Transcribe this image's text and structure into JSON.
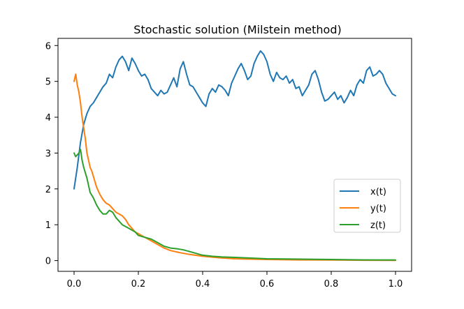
{
  "chart_data": {
    "type": "line",
    "title": "Stochastic solution (Milstein method)",
    "xlabel": "",
    "ylabel": "",
    "xlim": [
      -0.05,
      1.05
    ],
    "ylim": [
      -0.3,
      6.2
    ],
    "xticks": [
      0.0,
      0.2,
      0.4,
      0.6,
      0.8,
      1.0
    ],
    "xtick_labels": [
      "0.0",
      "0.2",
      "0.4",
      "0.6",
      "0.8",
      "1.0"
    ],
    "yticks": [
      0,
      1,
      2,
      3,
      4,
      5,
      6
    ],
    "ytick_labels": [
      "0",
      "1",
      "2",
      "3",
      "4",
      "5",
      "6"
    ],
    "grid": false,
    "legend_position": "center-right",
    "series": [
      {
        "name": "x(t)",
        "color": "#1f77b4",
        "x": [
          0.0,
          0.01,
          0.02,
          0.03,
          0.04,
          0.05,
          0.06,
          0.07,
          0.08,
          0.09,
          0.1,
          0.11,
          0.12,
          0.13,
          0.14,
          0.15,
          0.16,
          0.17,
          0.18,
          0.19,
          0.2,
          0.21,
          0.22,
          0.23,
          0.24,
          0.25,
          0.26,
          0.27,
          0.28,
          0.29,
          0.3,
          0.31,
          0.32,
          0.33,
          0.34,
          0.35,
          0.36,
          0.37,
          0.38,
          0.39,
          0.4,
          0.41,
          0.42,
          0.43,
          0.44,
          0.45,
          0.46,
          0.47,
          0.48,
          0.49,
          0.5,
          0.51,
          0.52,
          0.53,
          0.54,
          0.55,
          0.56,
          0.57,
          0.58,
          0.59,
          0.6,
          0.61,
          0.62,
          0.63,
          0.64,
          0.65,
          0.66,
          0.67,
          0.68,
          0.69,
          0.7,
          0.71,
          0.72,
          0.73,
          0.74,
          0.75,
          0.76,
          0.77,
          0.78,
          0.79,
          0.8,
          0.81,
          0.82,
          0.83,
          0.84,
          0.85,
          0.86,
          0.87,
          0.88,
          0.89,
          0.9,
          0.91,
          0.92,
          0.93,
          0.94,
          0.95,
          0.96,
          0.97,
          0.98,
          0.99,
          1.0
        ],
        "values": [
          2.0,
          2.6,
          3.3,
          3.8,
          4.1,
          4.3,
          4.4,
          4.55,
          4.7,
          4.85,
          4.95,
          5.2,
          5.1,
          5.4,
          5.6,
          5.7,
          5.55,
          5.3,
          5.65,
          5.5,
          5.3,
          5.15,
          5.2,
          5.05,
          4.8,
          4.7,
          4.6,
          4.75,
          4.65,
          4.7,
          4.9,
          5.1,
          4.85,
          5.35,
          5.55,
          5.2,
          4.9,
          4.85,
          4.7,
          4.55,
          4.4,
          4.3,
          4.65,
          4.8,
          4.7,
          4.9,
          4.85,
          4.75,
          4.6,
          4.95,
          5.15,
          5.35,
          5.5,
          5.3,
          5.05,
          5.15,
          5.5,
          5.7,
          5.85,
          5.75,
          5.55,
          5.2,
          5.0,
          5.25,
          5.1,
          5.05,
          5.15,
          4.95,
          5.05,
          4.8,
          4.85,
          4.6,
          4.75,
          4.9,
          5.2,
          5.3,
          5.05,
          4.7,
          4.45,
          4.5,
          4.6,
          4.7,
          4.5,
          4.6,
          4.4,
          4.55,
          4.75,
          4.6,
          4.9,
          5.05,
          4.95,
          5.3,
          5.4,
          5.15,
          5.2,
          5.3,
          5.2,
          4.95,
          4.8,
          4.65,
          4.6
        ]
      },
      {
        "name": "y(t)",
        "color": "#ff7f0e",
        "x": [
          0.0,
          0.005,
          0.01,
          0.015,
          0.02,
          0.025,
          0.03,
          0.035,
          0.04,
          0.045,
          0.05,
          0.055,
          0.06,
          0.065,
          0.07,
          0.08,
          0.09,
          0.1,
          0.11,
          0.12,
          0.13,
          0.14,
          0.15,
          0.16,
          0.17,
          0.18,
          0.19,
          0.2,
          0.22,
          0.24,
          0.26,
          0.28,
          0.3,
          0.33,
          0.36,
          0.4,
          0.45,
          0.5,
          0.55,
          0.6,
          0.7,
          0.8,
          0.9,
          1.0
        ],
        "values": [
          5.0,
          5.2,
          4.9,
          4.7,
          4.4,
          4.0,
          3.7,
          3.4,
          3.0,
          2.8,
          2.6,
          2.5,
          2.35,
          2.2,
          2.05,
          1.85,
          1.7,
          1.6,
          1.55,
          1.45,
          1.35,
          1.3,
          1.25,
          1.15,
          1.0,
          0.9,
          0.8,
          0.75,
          0.65,
          0.55,
          0.45,
          0.35,
          0.28,
          0.22,
          0.17,
          0.12,
          0.08,
          0.05,
          0.04,
          0.03,
          0.02,
          0.015,
          0.01,
          0.005
        ]
      },
      {
        "name": "z(t)",
        "color": "#2ca02c",
        "x": [
          0.0,
          0.005,
          0.01,
          0.015,
          0.02,
          0.025,
          0.03,
          0.035,
          0.04,
          0.045,
          0.05,
          0.06,
          0.07,
          0.08,
          0.09,
          0.1,
          0.11,
          0.12,
          0.13,
          0.14,
          0.15,
          0.16,
          0.17,
          0.18,
          0.19,
          0.2,
          0.22,
          0.24,
          0.26,
          0.28,
          0.3,
          0.32,
          0.34,
          0.36,
          0.38,
          0.4,
          0.43,
          0.46,
          0.5,
          0.55,
          0.6,
          0.7,
          0.8,
          0.9,
          1.0
        ],
        "values": [
          3.0,
          2.9,
          2.95,
          3.0,
          3.1,
          2.8,
          2.6,
          2.45,
          2.3,
          2.1,
          1.9,
          1.75,
          1.55,
          1.4,
          1.3,
          1.3,
          1.4,
          1.35,
          1.2,
          1.1,
          1.0,
          0.95,
          0.9,
          0.85,
          0.8,
          0.7,
          0.65,
          0.6,
          0.5,
          0.4,
          0.35,
          0.33,
          0.3,
          0.25,
          0.2,
          0.15,
          0.12,
          0.1,
          0.09,
          0.07,
          0.05,
          0.04,
          0.03,
          0.02,
          0.015
        ]
      }
    ]
  }
}
